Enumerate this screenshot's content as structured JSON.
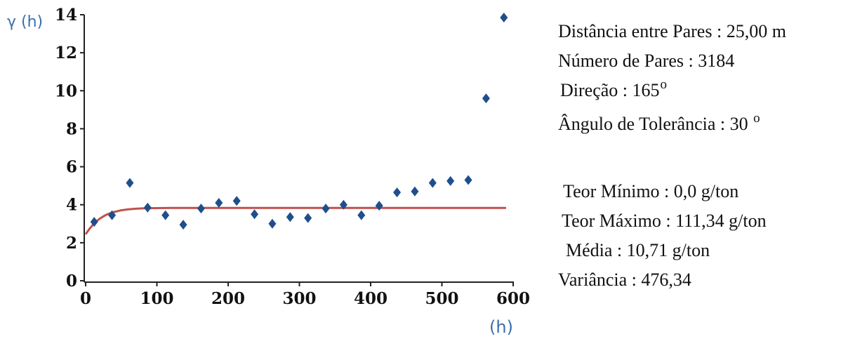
{
  "chart_data": {
    "type": "scatter",
    "ylabel": "γ (h)",
    "xlabel": "(h)",
    "xlim": [
      0,
      600
    ],
    "ylim": [
      0,
      14
    ],
    "xticks": [
      "0",
      "100",
      "200",
      "300",
      "400",
      "500",
      "600"
    ],
    "yticks": [
      "0",
      "2",
      "4",
      "6",
      "8",
      "10",
      "12",
      "14"
    ],
    "grid": false,
    "legend": "none",
    "series": [
      {
        "type": "scatter",
        "marker": "diamond",
        "color": "#1f4e8c",
        "x": [
          12,
          37,
          62,
          87,
          112,
          137,
          162,
          187,
          212,
          237,
          262,
          287,
          312,
          337,
          362,
          387,
          412,
          437,
          462,
          487,
          512,
          537,
          562,
          587
        ],
        "y": [
          3.1,
          3.45,
          5.15,
          3.85,
          3.45,
          2.95,
          3.8,
          4.1,
          4.2,
          3.5,
          3.0,
          3.35,
          3.3,
          3.8,
          4.0,
          3.45,
          3.95,
          4.65,
          4.7,
          5.15,
          5.25,
          5.3,
          9.6,
          13.85
        ]
      },
      {
        "type": "line",
        "color": "#c0504d",
        "x": [
          0,
          5,
          10,
          15,
          20,
          25,
          30,
          40,
          50,
          60,
          70,
          80,
          90,
          100,
          120,
          150,
          200,
          300,
          400,
          500,
          590
        ],
        "y": [
          2.45,
          2.71,
          2.94,
          3.12,
          3.27,
          3.39,
          3.49,
          3.62,
          3.71,
          3.76,
          3.79,
          3.81,
          3.82,
          3.825,
          3.83,
          3.83,
          3.83,
          3.83,
          3.83,
          3.83,
          3.83
        ]
      }
    ]
  },
  "info": {
    "distance": "Distância entre Pares : 25,00  m",
    "pairs": "Número de Pares :  3184",
    "direction": "Direção :  165",
    "direction_unit": "o",
    "tolerance": "Ângulo de Tolerância : 30",
    "tolerance_unit": "o",
    "min_grade": "Teor Mínimo : 0,0 g/ton",
    "max_grade": "Teor Máximo : 111,34 g/ton",
    "mean": "Média  :  10,71 g/ton",
    "variance": "Variância :  476,34"
  }
}
